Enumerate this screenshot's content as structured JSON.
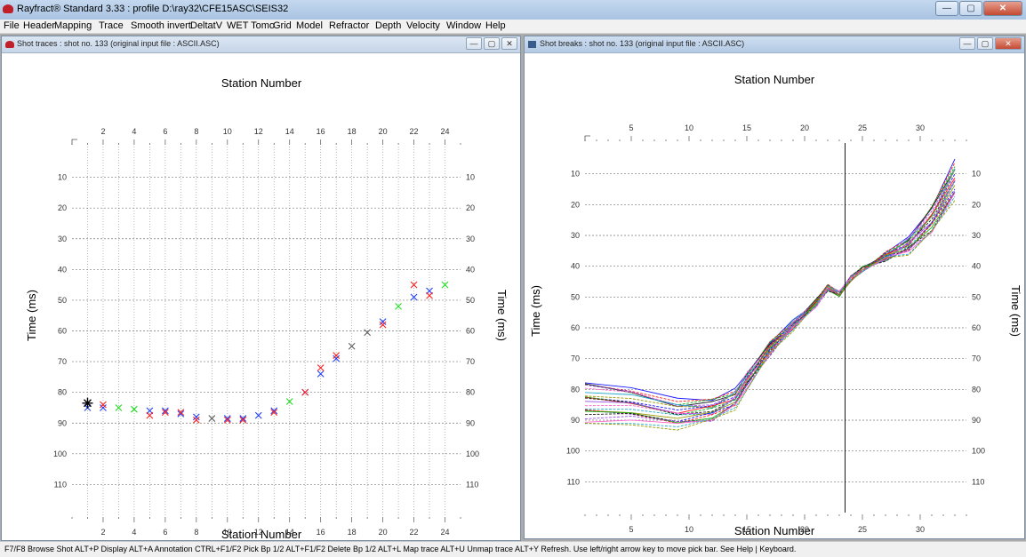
{
  "app": {
    "title": "Rayfract® Standard 3.33 : profile D:\\ray32\\CFE15ASC\\SEIS32",
    "window_controls": {
      "minimize": "—",
      "maximize": "▢",
      "close": "✕"
    }
  },
  "menu": [
    "File",
    "Header",
    "Mapping",
    "Trace",
    "Smooth invert",
    "DeltatV",
    "WET Tomo",
    "Grid",
    "Model",
    "Refractor",
    "Depth",
    "Velocity",
    "Window",
    "Help"
  ],
  "child_controls": {
    "minimize": "—",
    "maximize": "▢",
    "close": "✕"
  },
  "left_window": {
    "title": "Shot traces : shot no. 133 (original input file : ASCII.ASC)",
    "chart_data": {
      "type": "scatter",
      "xlabel_top": "Station Number",
      "xlabel_bottom": "Station Number",
      "ylabel_left": "Time (ms)",
      "ylabel_right": "Time (ms)",
      "xlim": [
        0,
        25
      ],
      "ylim": [
        0,
        120
      ],
      "x_ticks": [
        2,
        4,
        6,
        8,
        10,
        12,
        14,
        16,
        18,
        20,
        22,
        24
      ],
      "y_ticks": [
        10,
        20,
        30,
        40,
        50,
        60,
        70,
        80,
        90,
        100,
        110
      ],
      "shot_station": 1,
      "shot_time": 83.5,
      "series": [
        {
          "color": "#1f3fff",
          "points": [
            [
              1,
              85
            ],
            [
              2,
              85
            ],
            [
              5,
              86
            ],
            [
              6,
              86
            ],
            [
              7,
              87
            ],
            [
              8,
              88
            ],
            [
              10,
              88.5
            ],
            [
              11,
              88.5
            ],
            [
              12,
              87.5
            ],
            [
              13,
              86
            ],
            [
              15,
              80
            ],
            [
              16,
              74
            ],
            [
              17,
              69
            ],
            [
              20,
              57
            ],
            [
              22,
              49
            ],
            [
              23,
              47
            ]
          ]
        },
        {
          "color": "#ff2020",
          "points": [
            [
              2,
              84
            ],
            [
              5,
              87.5
            ],
            [
              6,
              86.5
            ],
            [
              7,
              86.5
            ],
            [
              8,
              89
            ],
            [
              10,
              89
            ],
            [
              11,
              89
            ],
            [
              13,
              86.5
            ],
            [
              15,
              80
            ],
            [
              16,
              72
            ],
            [
              17,
              68
            ],
            [
              20,
              58
            ],
            [
              22,
              45
            ],
            [
              23,
              48.5
            ]
          ]
        },
        {
          "color": "#20e020",
          "points": [
            [
              3,
              85
            ],
            [
              4,
              85.5
            ],
            [
              14,
              83
            ],
            [
              21,
              52
            ],
            [
              24,
              45
            ]
          ]
        },
        {
          "color": "#606060",
          "points": [
            [
              9,
              88.5
            ],
            [
              18,
              65
            ],
            [
              19,
              60.5
            ]
          ]
        }
      ]
    }
  },
  "right_window": {
    "title": "Shot breaks : shot no. 133 (original input file : ASCII.ASC)",
    "chart_data": {
      "type": "line",
      "xlabel_top": "Station Number",
      "xlabel_bottom": "Station Number",
      "ylabel_left": "Time (ms)",
      "ylabel_right": "Time (ms)",
      "xlim": [
        1,
        34
      ],
      "ylim": [
        0,
        120
      ],
      "x_ticks": [
        5,
        10,
        15,
        20,
        25,
        30
      ],
      "y_ticks": [
        10,
        20,
        30,
        40,
        50,
        60,
        70,
        80,
        90,
        100,
        110
      ],
      "pick_bar_station": 23.5,
      "x": [
        1,
        5,
        9,
        12,
        14,
        15,
        17,
        19,
        21,
        22,
        23,
        24,
        25,
        27,
        29,
        31,
        33
      ],
      "base_curve": [
        84,
        85,
        88,
        87,
        83,
        77,
        67,
        59,
        52,
        47,
        49,
        44,
        41,
        37,
        33,
        25,
        12
      ],
      "spread_left": 14,
      "series_count": 24,
      "series_colors": [
        "#1a1aff",
        "#ff1a1a",
        "#18b018",
        "#202020",
        "#9a4de8",
        "#ff66cc",
        "#22a8c8",
        "#9a9a00"
      ]
    }
  },
  "status_bar": "F7/F8 Browse Shot  ALT+P Display  ALT+A Annotation  CTRL+F1/F2 Pick Bp 1/2  ALT+F1/F2 Delete Bp 1/2  ALT+L Map trace  ALT+U Unmap trace  ALT+Y Refresh.  Use left/right arrow key to move pick bar.  See Help | Keyboard."
}
